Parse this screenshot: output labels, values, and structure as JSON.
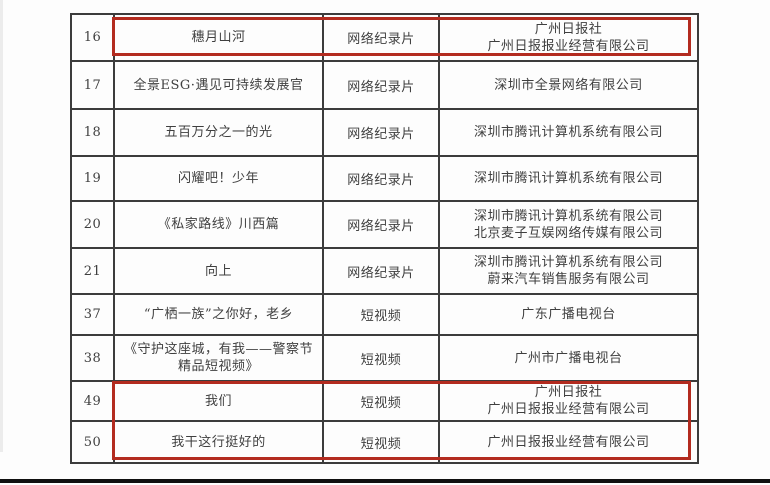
{
  "page": {
    "background_color": "#fdfdfd",
    "bottom_line_color": "#101010"
  },
  "highlight": {
    "color": "#b32b1f",
    "boxes": [
      {
        "label": "highlight-row-16",
        "rows": [
          "16"
        ]
      },
      {
        "label": "highlight-rows-49-50",
        "rows": [
          "49",
          "50"
        ]
      }
    ]
  },
  "table": {
    "border_color": "#3c3c3c",
    "columns": [
      "number",
      "title",
      "category",
      "company"
    ],
    "rows": [
      {
        "number": "16",
        "title": "穗月山河",
        "category": "网络纪录片",
        "companies": [
          "广州日报社",
          "广州日报报业经营有限公司"
        ],
        "highlighted": true
      },
      {
        "number": "17",
        "title": "全景ESG·遇见可持续发展官",
        "category": "网络纪录片",
        "companies": [
          "深圳市全景网络有限公司"
        ],
        "highlighted": false
      },
      {
        "number": "18",
        "title": "五百万分之一的光",
        "category": "网络纪录片",
        "companies": [
          "深圳市腾讯计算机系统有限公司"
        ],
        "highlighted": false
      },
      {
        "number": "19",
        "title": "闪耀吧！少年",
        "category": "网络纪录片",
        "companies": [
          "深圳市腾讯计算机系统有限公司"
        ],
        "highlighted": false
      },
      {
        "number": "20",
        "title": "《私家路线》川西篇",
        "category": "网络纪录片",
        "companies": [
          "深圳市腾讯计算机系统有限公司",
          "北京麦子互娱网络传媒有限公司"
        ],
        "highlighted": false
      },
      {
        "number": "21",
        "title": "向上",
        "category": "网络纪录片",
        "companies": [
          "深圳市腾讯计算机系统有限公司",
          "蔚来汽车销售服务有限公司"
        ],
        "highlighted": false
      },
      {
        "number": "37",
        "title": "“广栖一族”之你好，老乡",
        "category": "短视频",
        "companies": [
          "广东广播电视台"
        ],
        "highlighted": false
      },
      {
        "number": "38",
        "title": "《守护这座城，有我——警察节精品短视频》",
        "category": "短视频",
        "companies": [
          "广州市广播电视台"
        ],
        "highlighted": false
      },
      {
        "number": "49",
        "title": "我们",
        "category": "短视频",
        "companies": [
          "广州日报社",
          "广州日报报业经营有限公司"
        ],
        "highlighted": true
      },
      {
        "number": "50",
        "title": "我干这行挺好的",
        "category": "短视频",
        "companies": [
          "广州日报报业经营有限公司"
        ],
        "highlighted": true
      }
    ]
  }
}
